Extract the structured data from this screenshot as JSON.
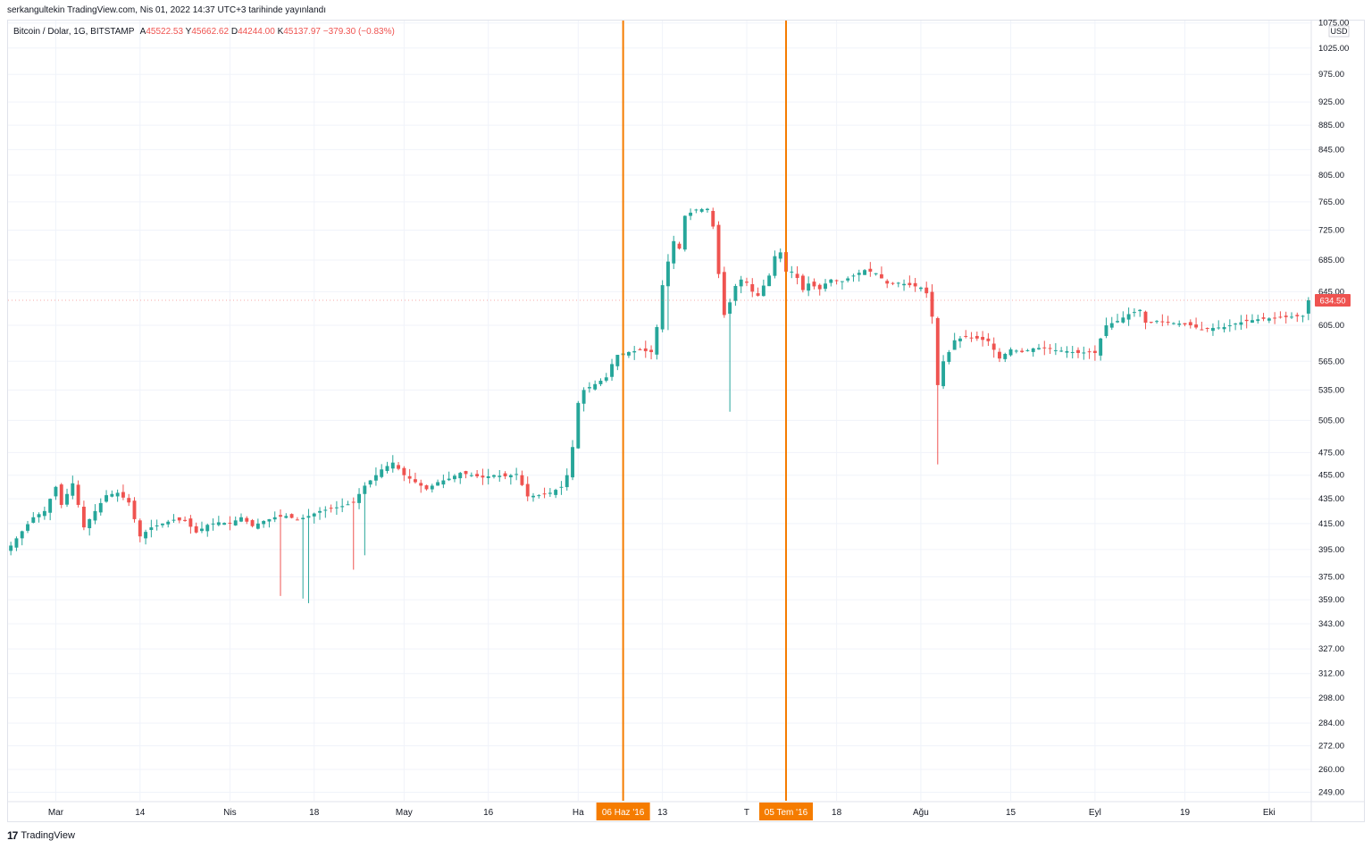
{
  "attribution": "serkangultekin TradingView.com, Nis 01, 2022 14:37 UTC+3 tarihinde yayınlandı",
  "legend": {
    "symbol": "Bitcoin / Dolar, 1G, BITSTAMP",
    "open_label": "A",
    "open_value": "45522.53",
    "high_label": "Y",
    "high_value": "45662.62",
    "low_label": "D",
    "low_value": "44244.00",
    "close_label": "K",
    "close_value": "45137.97",
    "change": "−379.30 (−0.83%)"
  },
  "footer": {
    "brand": "TradingView"
  },
  "colors": {
    "up": "#26a69a",
    "down": "#ef5350",
    "marker": "#f57c00",
    "grid": "#f0f3fa"
  },
  "chart_data": {
    "type": "candlestick",
    "currency": "USD",
    "y_scale": "log",
    "ylim": [
      245,
      1080
    ],
    "y_ticks": [
      "1075.00",
      "1025.00",
      "975.00",
      "925.00",
      "885.00",
      "845.00",
      "805.00",
      "765.00",
      "725.00",
      "685.00",
      "645.00",
      "605.00",
      "565.00",
      "535.00",
      "505.00",
      "475.00",
      "455.00",
      "435.00",
      "415.00",
      "395.00",
      "375.00",
      "359.00",
      "343.00",
      "327.00",
      "312.00",
      "298.00",
      "284.00",
      "272.00",
      "260.00",
      "249.00"
    ],
    "x_ticks": [
      "Mar",
      "14",
      "Nis",
      "18",
      "May",
      "16",
      "Ha",
      "13",
      "T",
      "18",
      "Ağu",
      "15",
      "Eyl",
      "19",
      "Eki"
    ],
    "current_price": "634.50",
    "markers": [
      {
        "label": "06 Haz '16",
        "index": 109
      },
      {
        "label": "05 Tem '16",
        "index": 138
      }
    ],
    "waypoints": [
      [
        0,
        398
      ],
      [
        4,
        420
      ],
      [
        6,
        425
      ],
      [
        8,
        445
      ],
      [
        9,
        430
      ],
      [
        11,
        448
      ],
      [
        13,
        412
      ],
      [
        15,
        425
      ],
      [
        17,
        438
      ],
      [
        19,
        440
      ],
      [
        21,
        432
      ],
      [
        23,
        405
      ],
      [
        25,
        412
      ],
      [
        27,
        415
      ],
      [
        29,
        418
      ],
      [
        31,
        417
      ],
      [
        33,
        408
      ],
      [
        35,
        414
      ],
      [
        37,
        416
      ],
      [
        39,
        415
      ],
      [
        41,
        420
      ],
      [
        43,
        413
      ],
      [
        45,
        417
      ],
      [
        47,
        420
      ],
      [
        49,
        421
      ],
      [
        51,
        418
      ],
      [
        53,
        421
      ],
      [
        55,
        425
      ],
      [
        57,
        427
      ],
      [
        59,
        429
      ],
      [
        61,
        432
      ],
      [
        63,
        446
      ],
      [
        65,
        455
      ],
      [
        66,
        460
      ],
      [
        67,
        463
      ],
      [
        68,
        466
      ],
      [
        70,
        455
      ],
      [
        72,
        449
      ],
      [
        74,
        443
      ],
      [
        76,
        449
      ],
      [
        78,
        452
      ],
      [
        80,
        457
      ],
      [
        82,
        455
      ],
      [
        84,
        453
      ],
      [
        86,
        455
      ],
      [
        88,
        454
      ],
      [
        90,
        456
      ],
      [
        92,
        437
      ],
      [
        94,
        438
      ],
      [
        96,
        440
      ],
      [
        98,
        445
      ],
      [
        99,
        455
      ],
      [
        100,
        480
      ],
      [
        101,
        522
      ],
      [
        102,
        535
      ],
      [
        104,
        541
      ],
      [
        106,
        548
      ],
      [
        107,
        562
      ],
      [
        108,
        572
      ],
      [
        110,
        575
      ],
      [
        112,
        577
      ],
      [
        114,
        575
      ],
      [
        115,
        603
      ],
      [
        116,
        653
      ],
      [
        117,
        683
      ],
      [
        118,
        710
      ],
      [
        119,
        700
      ],
      [
        120,
        745
      ],
      [
        122,
        754
      ],
      [
        124,
        755
      ],
      [
        125,
        730
      ],
      [
        126,
        667
      ],
      [
        127,
        617
      ],
      [
        128,
        632
      ],
      [
        129,
        652
      ],
      [
        130,
        660
      ],
      [
        131,
        656
      ],
      [
        132,
        645
      ],
      [
        133,
        640
      ],
      [
        135,
        665
      ],
      [
        136,
        690
      ],
      [
        137,
        695
      ],
      [
        138,
        670
      ],
      [
        139,
        670
      ],
      [
        140,
        662
      ],
      [
        141,
        647
      ],
      [
        142,
        655
      ],
      [
        144,
        648
      ],
      [
        145,
        655
      ],
      [
        146,
        660
      ],
      [
        148,
        658
      ],
      [
        150,
        665
      ],
      [
        152,
        672
      ],
      [
        154,
        668
      ],
      [
        156,
        655
      ],
      [
        158,
        656
      ],
      [
        160,
        653
      ],
      [
        162,
        650
      ],
      [
        163,
        643
      ],
      [
        164,
        615
      ],
      [
        165,
        540
      ],
      [
        166,
        565
      ],
      [
        167,
        575
      ],
      [
        168,
        588
      ],
      [
        170,
        592
      ],
      [
        172,
        590
      ],
      [
        174,
        587
      ],
      [
        176,
        568
      ],
      [
        178,
        578
      ],
      [
        180,
        575
      ],
      [
        182,
        579
      ],
      [
        184,
        580
      ],
      [
        186,
        577
      ],
      [
        188,
        576
      ],
      [
        190,
        574
      ],
      [
        192,
        575
      ],
      [
        193,
        574
      ],
      [
        194,
        590
      ],
      [
        195,
        605
      ],
      [
        197,
        610
      ],
      [
        199,
        618
      ],
      [
        201,
        623
      ],
      [
        202,
        608
      ],
      [
        204,
        610
      ],
      [
        206,
        608
      ],
      [
        208,
        607
      ],
      [
        210,
        605
      ],
      [
        212,
        600
      ],
      [
        214,
        602
      ],
      [
        216,
        603
      ],
      [
        218,
        607
      ],
      [
        220,
        610
      ],
      [
        222,
        612
      ],
      [
        224,
        613
      ],
      [
        226,
        614
      ],
      [
        228,
        615
      ],
      [
        230,
        616
      ],
      [
        231,
        634.5
      ]
    ]
  }
}
